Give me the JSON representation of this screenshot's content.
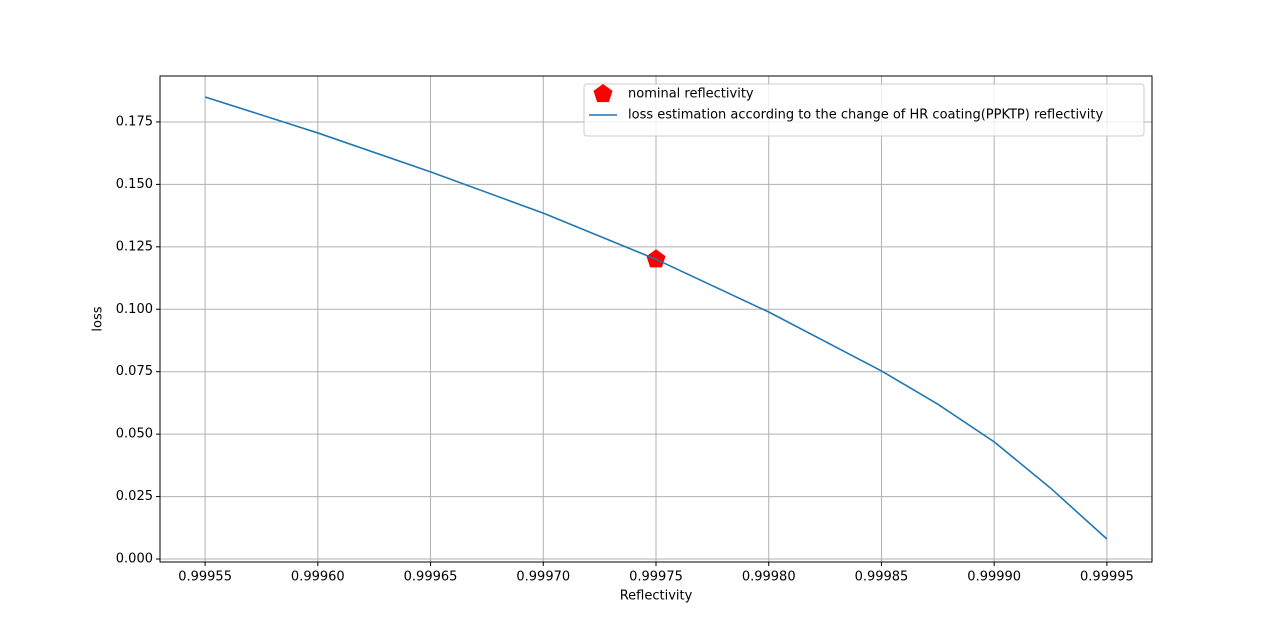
{
  "chart_data": {
    "type": "line",
    "xlabel": "Reflectivity",
    "ylabel": "loss",
    "xlim": [
      0.99953,
      0.99997
    ],
    "ylim": [
      -0.0012,
      0.1934
    ],
    "xticks": [
      0.99955,
      {
        "value": 0.9996,
        "label": "0.99960"
      },
      0.99965,
      {
        "value": 0.9997,
        "label": "0.99970"
      },
      0.99975,
      {
        "value": 0.9998,
        "label": "0.99980"
      },
      0.99985,
      {
        "value": 0.9999,
        "label": "0.99990"
      },
      0.99995
    ],
    "yticks": [
      {
        "value": 0,
        "label": "0.000"
      },
      0.025,
      {
        "value": 0.05,
        "label": "0.050"
      },
      0.075,
      {
        "value": 0.1,
        "label": "0.100"
      },
      0.125,
      {
        "value": 0.15,
        "label": "0.150"
      },
      0.175
    ],
    "grid": true,
    "legend": "upper right",
    "series": [
      {
        "name": "nominal reflectivity",
        "color": "#ff0000",
        "marker": "pentagon",
        "x": [
          0.99975
        ],
        "values": [
          0.12
        ]
      },
      {
        "name": "loss estimation according to the change of HR coating(PPKTP) reflectivity",
        "color": "#1f77b4",
        "x": [
          0.99955,
          0.9996,
          0.99965,
          0.9997,
          0.99975,
          0.9998,
          0.99985,
          0.999875,
          0.9999,
          0.999925,
          0.99995
        ],
        "values": [
          0.185,
          0.1706,
          0.155,
          0.1385,
          0.12,
          0.0989,
          0.0753,
          0.062,
          0.0469,
          0.0284,
          0.008
        ]
      }
    ]
  }
}
